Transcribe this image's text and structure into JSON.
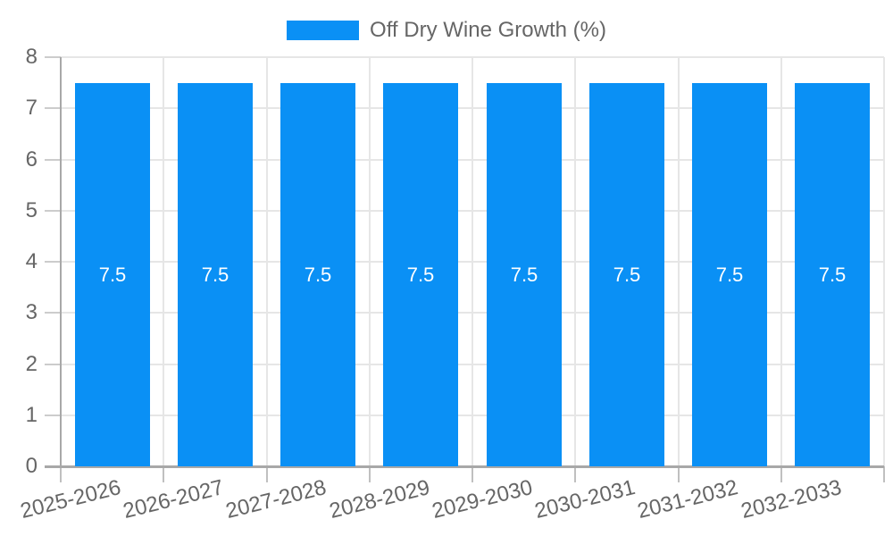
{
  "chart_data": {
    "type": "bar",
    "title": "",
    "categories": [
      "2025-2026",
      "2026-2027",
      "2027-2028",
      "2028-2029",
      "2029-2030",
      "2030-2031",
      "2031-2032",
      "2032-2033"
    ],
    "series": [
      {
        "name": "Off Dry Wine Growth (%)",
        "values": [
          7.5,
          7.5,
          7.5,
          7.5,
          7.5,
          7.5,
          7.5,
          7.5
        ]
      }
    ],
    "bar_value_labels": [
      "7.5",
      "7.5",
      "7.5",
      "7.5",
      "7.5",
      "7.5",
      "7.5",
      "7.5"
    ],
    "ylim": [
      0,
      8
    ],
    "ytick_step": 1,
    "ytick_labels": [
      "0",
      "1",
      "2",
      "3",
      "4",
      "5",
      "6",
      "7",
      "8"
    ],
    "legend_position": "top",
    "grid": "on",
    "colors": {
      "bar": "#0a90f5",
      "grid": "#e6e6e6",
      "axis": "#a8a8a8",
      "tick_text": "#666666",
      "legend_text": "#666666",
      "bar_value_text": "#ffffff",
      "background": "#ffffff"
    }
  }
}
